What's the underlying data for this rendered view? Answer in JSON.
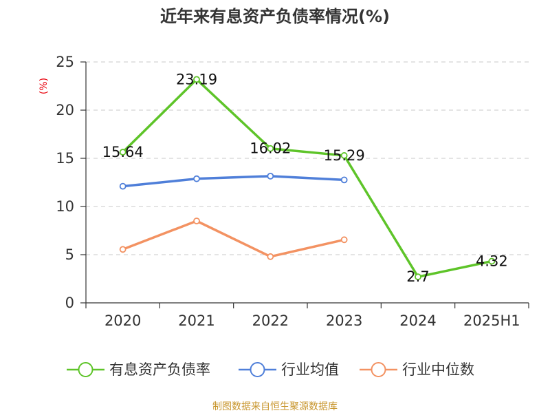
{
  "title": "近年来有息资产负债率情况(%)",
  "source": "制图数据来自恒生聚源数据库",
  "chart_data": {
    "type": "line",
    "title": "近年来有息资产负债率情况(%)",
    "xlabel": "",
    "ylabel": "(%)",
    "categories": [
      "2020",
      "2021",
      "2022",
      "2023",
      "2024",
      "2025H1"
    ],
    "ylim": [
      0,
      25
    ],
    "yticks": [
      0,
      5,
      10,
      15,
      20,
      25
    ],
    "grid": true,
    "legend_position": "bottom",
    "series": [
      {
        "name": "有息资产负债率",
        "color": "#5ec429",
        "values": [
          15.64,
          23.19,
          16.02,
          15.29,
          2.7,
          4.32
        ],
        "labels": [
          "15.64",
          "23.19",
          "16.02",
          "15.29",
          "2.7",
          "4.32"
        ]
      },
      {
        "name": "行业均值",
        "color": "#4f7fd9",
        "values": [
          12.1,
          12.88,
          13.15,
          12.76,
          null,
          null
        ]
      },
      {
        "name": "行业中位数",
        "color": "#f39262",
        "values": [
          5.55,
          8.5,
          4.8,
          6.55,
          null,
          null
        ]
      }
    ]
  }
}
